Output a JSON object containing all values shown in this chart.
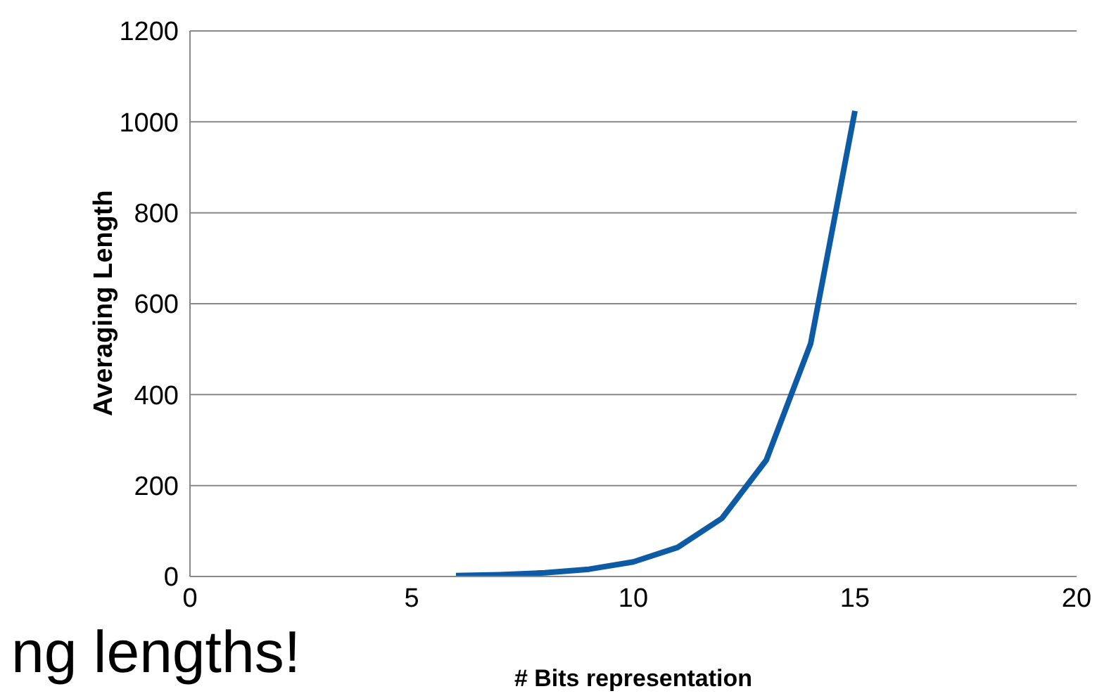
{
  "chart_data": {
    "type": "line",
    "xlabel": "# Bits representation",
    "ylabel": "Averaging Length",
    "x": [
      6,
      7,
      8,
      9,
      10,
      11,
      12,
      13,
      14,
      15
    ],
    "series": [
      {
        "color": "#0d5ba4",
        "values": [
          2,
          4,
          8,
          16,
          32,
          64,
          128,
          256,
          512,
          1024
        ]
      }
    ],
    "xlim": [
      0,
      20
    ],
    "xticks": [
      0,
      5,
      10,
      15,
      20
    ],
    "ylim": [
      0,
      1200
    ],
    "yticks": [
      0,
      200,
      400,
      600,
      800,
      1000,
      1200
    ],
    "grid": "y",
    "legend": false,
    "marker": "none",
    "line_style": "solid",
    "annotations": [
      "ng lengths!"
    ]
  }
}
